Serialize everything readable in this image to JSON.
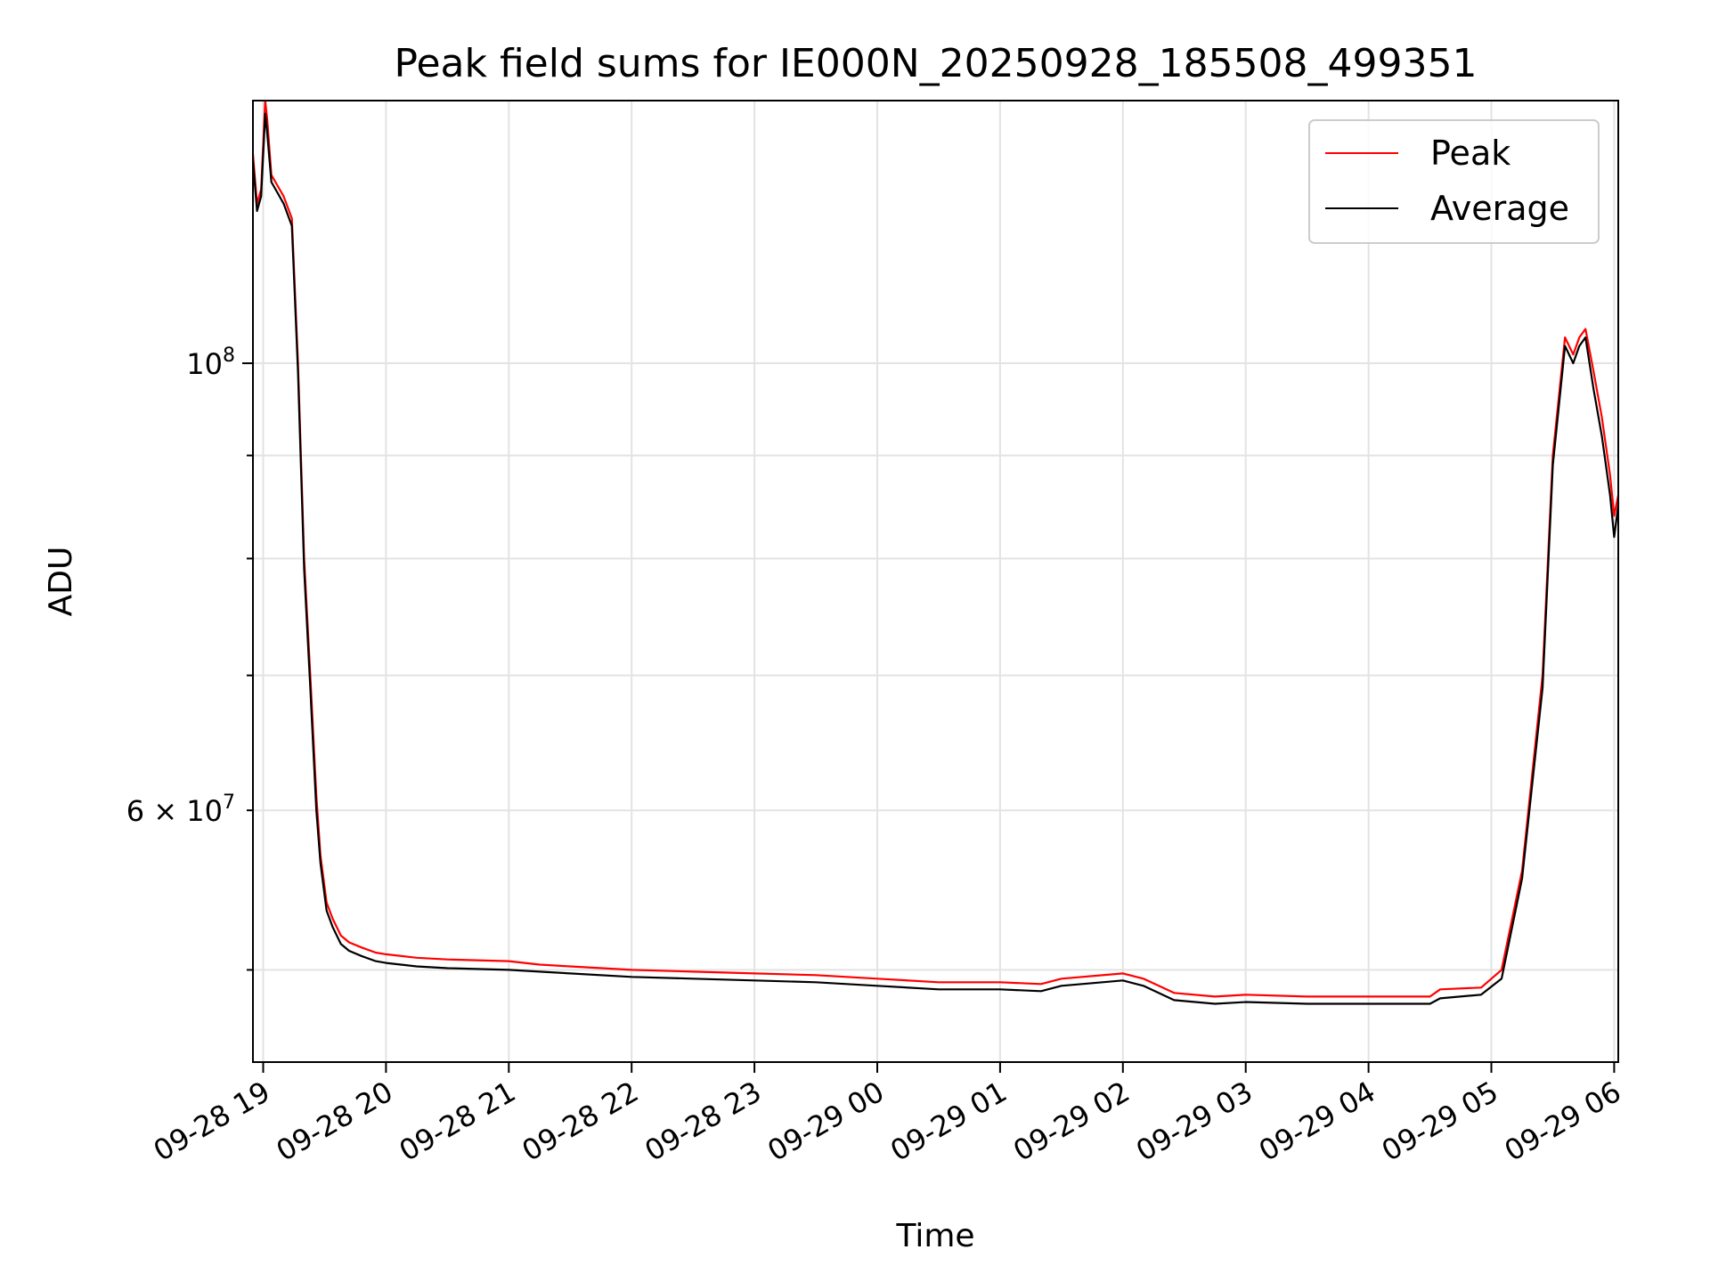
{
  "chart_data": {
    "type": "line",
    "title": "Peak field sums for IE000N_20250928_185508_499351",
    "xlabel": "Time",
    "ylabel": "ADU",
    "x_ticks": [
      "09-28 19",
      "09-28 20",
      "09-28 21",
      "09-28 22",
      "09-28 23",
      "09-29 00",
      "09-29 01",
      "09-29 02",
      "09-29 03",
      "09-29 04",
      "09-29 05",
      "09-29 06"
    ],
    "xlim": [
      "2025-09-28 18:55",
      "2025-09-29 06:02"
    ],
    "y_scale": "log",
    "ylim": [
      45000000,
      135000000
    ],
    "y_major_ticks": [
      {
        "value": 100000000,
        "base": "10",
        "exp": "8"
      }
    ],
    "y_minor_ticks": [
      {
        "value": 60000000,
        "mant": "6",
        "base": "10",
        "exp": "7"
      },
      {
        "value": 50000000
      },
      {
        "value": 70000000
      },
      {
        "value": 80000000
      },
      {
        "value": 90000000
      }
    ],
    "grid": true,
    "legend": {
      "position": "top-right"
    },
    "series": [
      {
        "name": "Peak",
        "color": "#ff0000",
        "x": [
          "2025-09-28 18:55",
          "2025-09-28 18:57",
          "2025-09-28 18:59",
          "2025-09-28 19:01",
          "2025-09-28 19:02",
          "2025-09-28 19:04",
          "2025-09-28 19:06",
          "2025-09-28 19:10",
          "2025-09-28 19:14",
          "2025-09-28 19:17",
          "2025-09-28 19:20",
          "2025-09-28 19:23",
          "2025-09-28 19:26",
          "2025-09-28 19:28",
          "2025-09-28 19:31",
          "2025-09-28 19:34",
          "2025-09-28 19:38",
          "2025-09-28 19:42",
          "2025-09-28 19:48",
          "2025-09-28 19:55",
          "2025-09-28 20:00",
          "2025-09-28 20:15",
          "2025-09-28 20:30",
          "2025-09-28 21:00",
          "2025-09-28 21:15",
          "2025-09-28 21:30",
          "2025-09-28 22:00",
          "2025-09-28 22:30",
          "2025-09-28 23:00",
          "2025-09-28 23:30",
          "2025-09-29 00:00",
          "2025-09-29 00:30",
          "2025-09-29 01:00",
          "2025-09-29 01:20",
          "2025-09-29 01:30",
          "2025-09-29 02:00",
          "2025-09-29 02:10",
          "2025-09-29 02:25",
          "2025-09-29 02:45",
          "2025-09-29 03:00",
          "2025-09-29 03:30",
          "2025-09-29 04:00",
          "2025-09-29 04:30",
          "2025-09-29 04:35",
          "2025-09-29 04:55",
          "2025-09-29 05:05",
          "2025-09-29 05:15",
          "2025-09-29 05:25",
          "2025-09-29 05:30",
          "2025-09-29 05:36",
          "2025-09-29 05:40",
          "2025-09-29 05:43",
          "2025-09-29 05:46",
          "2025-09-29 05:50",
          "2025-09-29 05:54",
          "2025-09-29 05:58",
          "2025-09-29 06:00",
          "2025-09-29 06:02"
        ],
        "y": [
          127000000,
          120000000,
          122000000,
          135000000,
          132000000,
          124000000,
          123000000,
          121000000,
          118000000,
          100000000,
          80000000,
          70000000,
          61000000,
          57000000,
          54000000,
          53000000,
          52000000,
          51600000,
          51300000,
          51000000,
          50900000,
          50700000,
          50600000,
          50500000,
          50300000,
          50200000,
          50000000,
          49900000,
          49800000,
          49700000,
          49500000,
          49300000,
          49300000,
          49200000,
          49500000,
          49800000,
          49500000,
          48700000,
          48500000,
          48600000,
          48500000,
          48500000,
          48500000,
          48900000,
          49000000,
          50000000,
          56000000,
          70000000,
          90000000,
          103000000,
          101000000,
          103000000,
          104000000,
          99000000,
          94000000,
          88000000,
          84000000,
          86000000
        ]
      },
      {
        "name": "Average",
        "color": "#000000",
        "x": [
          "2025-09-28 18:55",
          "2025-09-28 18:57",
          "2025-09-28 18:59",
          "2025-09-28 19:01",
          "2025-09-28 19:02",
          "2025-09-28 19:04",
          "2025-09-28 19:06",
          "2025-09-28 19:10",
          "2025-09-28 19:14",
          "2025-09-28 19:17",
          "2025-09-28 19:20",
          "2025-09-28 19:23",
          "2025-09-28 19:26",
          "2025-09-28 19:28",
          "2025-09-28 19:31",
          "2025-09-28 19:34",
          "2025-09-28 19:38",
          "2025-09-28 19:42",
          "2025-09-28 19:48",
          "2025-09-28 19:55",
          "2025-09-28 20:00",
          "2025-09-28 20:15",
          "2025-09-28 20:30",
          "2025-09-28 21:00",
          "2025-09-28 21:15",
          "2025-09-28 21:30",
          "2025-09-28 22:00",
          "2025-09-28 22:30",
          "2025-09-28 23:00",
          "2025-09-28 23:30",
          "2025-09-29 00:00",
          "2025-09-29 00:30",
          "2025-09-29 01:00",
          "2025-09-29 01:20",
          "2025-09-29 01:30",
          "2025-09-29 02:00",
          "2025-09-29 02:10",
          "2025-09-29 02:25",
          "2025-09-29 02:45",
          "2025-09-29 03:00",
          "2025-09-29 03:30",
          "2025-09-29 04:00",
          "2025-09-29 04:30",
          "2025-09-29 04:35",
          "2025-09-29 04:55",
          "2025-09-29 05:05",
          "2025-09-29 05:15",
          "2025-09-29 05:25",
          "2025-09-29 05:30",
          "2025-09-29 05:36",
          "2025-09-29 05:40",
          "2025-09-29 05:43",
          "2025-09-29 05:46",
          "2025-09-29 05:50",
          "2025-09-29 05:54",
          "2025-09-29 05:58",
          "2025-09-29 06:00",
          "2025-09-29 06:02"
        ],
        "y": [
          126000000,
          119000000,
          121000000,
          133000000,
          130000000,
          123000000,
          122000000,
          120000000,
          117000000,
          99000000,
          79000000,
          69000000,
          60000000,
          56500000,
          53500000,
          52500000,
          51500000,
          51100000,
          50800000,
          50500000,
          50400000,
          50200000,
          50100000,
          50000000,
          49900000,
          49800000,
          49600000,
          49500000,
          49400000,
          49300000,
          49100000,
          48900000,
          48900000,
          48800000,
          49100000,
          49400000,
          49100000,
          48300000,
          48100000,
          48200000,
          48100000,
          48100000,
          48100000,
          48400000,
          48600000,
          49500000,
          55500000,
          69000000,
          89000000,
          102000000,
          100000000,
          102000000,
          103000000,
          97000000,
          92000000,
          86000000,
          82000000,
          85000000
        ]
      }
    ]
  }
}
